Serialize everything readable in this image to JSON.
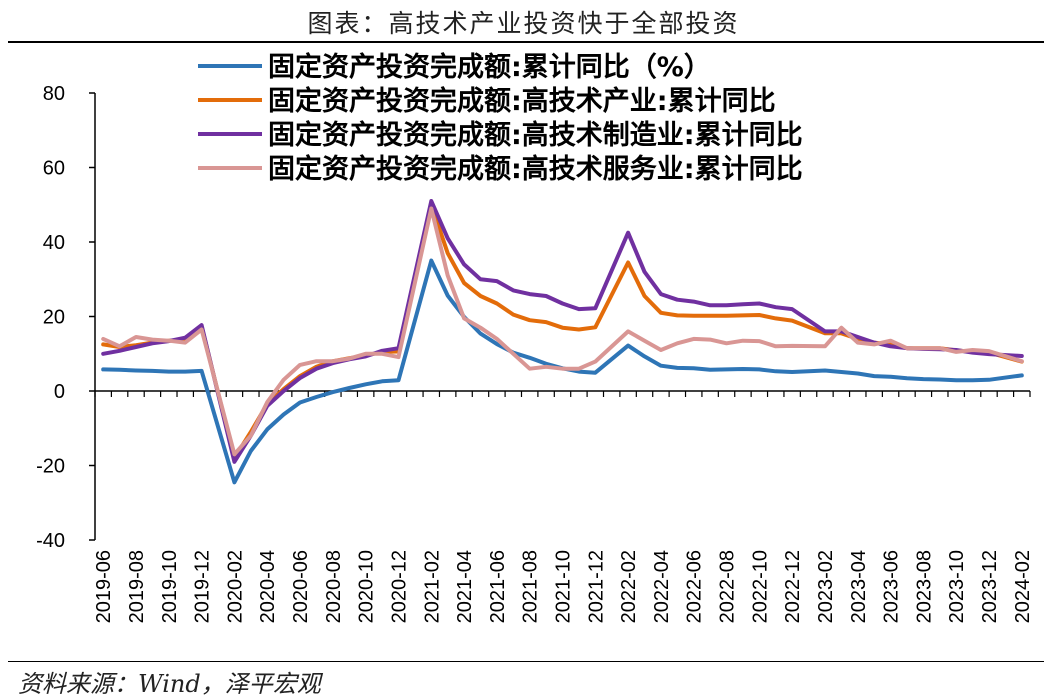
{
  "title": "图表：高技术产业投资快于全部投资",
  "source": "资料来源：Wind，泽平宏观",
  "chart_data": {
    "type": "line",
    "title": "图表：高技术产业投资快于全部投资",
    "xlabel": "",
    "ylabel": "",
    "ylim": [
      -40,
      80
    ],
    "yticks": [
      -40,
      -20,
      0,
      20,
      40,
      60,
      80
    ],
    "legend_position": "top",
    "x": [
      "2019-06",
      "2019-07",
      "2019-08",
      "2019-09",
      "2019-10",
      "2019-11",
      "2019-12",
      "2020-01",
      "2020-02",
      "2020-03",
      "2020-04",
      "2020-05",
      "2020-06",
      "2020-07",
      "2020-08",
      "2020-09",
      "2020-10",
      "2020-11",
      "2020-12",
      "2021-01",
      "2021-02",
      "2021-03",
      "2021-04",
      "2021-05",
      "2021-06",
      "2021-07",
      "2021-08",
      "2021-09",
      "2021-10",
      "2021-11",
      "2021-12",
      "2022-01",
      "2022-02",
      "2022-03",
      "2022-04",
      "2022-05",
      "2022-06",
      "2022-07",
      "2022-08",
      "2022-09",
      "2022-10",
      "2022-11",
      "2022-12",
      "2023-01",
      "2023-02",
      "2023-03",
      "2023-04",
      "2023-05",
      "2023-06",
      "2023-07",
      "2023-08",
      "2023-09",
      "2023-10",
      "2023-11",
      "2023-12",
      "2024-01",
      "2024-02"
    ],
    "xtick_labels": [
      "2019-06",
      "2019-08",
      "2019-10",
      "2019-12",
      "2020-02",
      "2020-04",
      "2020-06",
      "2020-08",
      "2020-10",
      "2020-12",
      "2021-02",
      "2021-04",
      "2021-06",
      "2021-08",
      "2021-10",
      "2021-12",
      "2022-02",
      "2022-04",
      "2022-06",
      "2022-08",
      "2022-10",
      "2022-12",
      "2023-02",
      "2023-04",
      "2023-06",
      "2023-08",
      "2023-10",
      "2023-12",
      "2024-02"
    ],
    "series": [
      {
        "name": "固定资产投资完成额:累计同比（%）",
        "color": "#2e75b6",
        "values": [
          5.8,
          5.7,
          5.5,
          5.4,
          5.2,
          5.2,
          5.4,
          null,
          -24.5,
          -16.1,
          -10.3,
          -6.3,
          -3.1,
          -1.6,
          -0.3,
          0.8,
          1.8,
          2.6,
          2.9,
          null,
          35.0,
          25.6,
          19.9,
          15.4,
          12.6,
          10.3,
          8.9,
          7.3,
          6.1,
          5.2,
          4.9,
          null,
          12.2,
          9.3,
          6.8,
          6.2,
          6.1,
          5.7,
          5.8,
          5.9,
          5.8,
          5.3,
          5.1,
          null,
          5.5,
          5.1,
          4.7,
          4.0,
          3.8,
          3.4,
          3.2,
          3.1,
          2.9,
          2.9,
          3.0,
          null,
          4.2
        ]
      },
      {
        "name": "固定资产投资完成额:高技术产业:累计同比",
        "color": "#e36c0a",
        "values": [
          12.5,
          11.8,
          12.3,
          13.0,
          13.5,
          13.8,
          17.3,
          null,
          -18.0,
          -11.0,
          -3.5,
          0.5,
          4.0,
          6.5,
          8.0,
          8.8,
          9.5,
          10.5,
          10.6,
          null,
          50.0,
          37.0,
          29.0,
          25.5,
          23.5,
          20.5,
          19.0,
          18.5,
          17.0,
          16.5,
          17.1,
          null,
          34.5,
          25.5,
          21.0,
          20.3,
          20.2,
          20.2,
          20.2,
          20.3,
          20.4,
          19.5,
          18.9,
          null,
          15.5,
          15.5,
          14.0,
          13.0,
          12.5,
          11.5,
          11.5,
          11.5,
          10.9,
          10.5,
          10.3,
          null,
          7.9
        ]
      },
      {
        "name": "固定资产投资完成额:高技术制造业:累计同比",
        "color": "#7030a0",
        "values": [
          10.0,
          10.8,
          11.8,
          12.8,
          13.4,
          14.3,
          17.7,
          null,
          -19.0,
          -12.0,
          -4.0,
          0.0,
          3.5,
          6.0,
          7.5,
          8.5,
          9.3,
          10.8,
          11.5,
          null,
          51.0,
          41.0,
          34.0,
          30.0,
          29.5,
          27.0,
          26.0,
          25.5,
          23.5,
          22.0,
          22.2,
          null,
          42.5,
          32.0,
          26.0,
          24.5,
          24.0,
          23.0,
          23.0,
          23.3,
          23.5,
          22.5,
          22.0,
          null,
          16.0,
          16.0,
          14.5,
          13.0,
          12.0,
          11.5,
          11.3,
          11.2,
          11.0,
          10.3,
          9.9,
          null,
          9.4
        ]
      },
      {
        "name": "固定资产投资完成额:高技术服务业:累计同比",
        "color": "#d99694",
        "values": [
          14.0,
          12.0,
          14.5,
          13.8,
          13.5,
          13.0,
          16.5,
          null,
          -17.0,
          -12.0,
          -3.0,
          3.0,
          7.0,
          8.0,
          8.0,
          8.7,
          10.0,
          10.0,
          9.1,
          null,
          49.0,
          31.0,
          19.5,
          17.0,
          14.0,
          10.0,
          6.0,
          6.5,
          6.0,
          6.0,
          7.9,
          null,
          16.0,
          13.5,
          11.0,
          12.8,
          14.0,
          13.8,
          12.8,
          13.5,
          13.4,
          12.0,
          12.1,
          null,
          12.0,
          17.0,
          13.0,
          12.5,
          13.5,
          11.5,
          11.5,
          11.5,
          10.5,
          11.0,
          10.7,
          null,
          8.0
        ]
      }
    ]
  }
}
